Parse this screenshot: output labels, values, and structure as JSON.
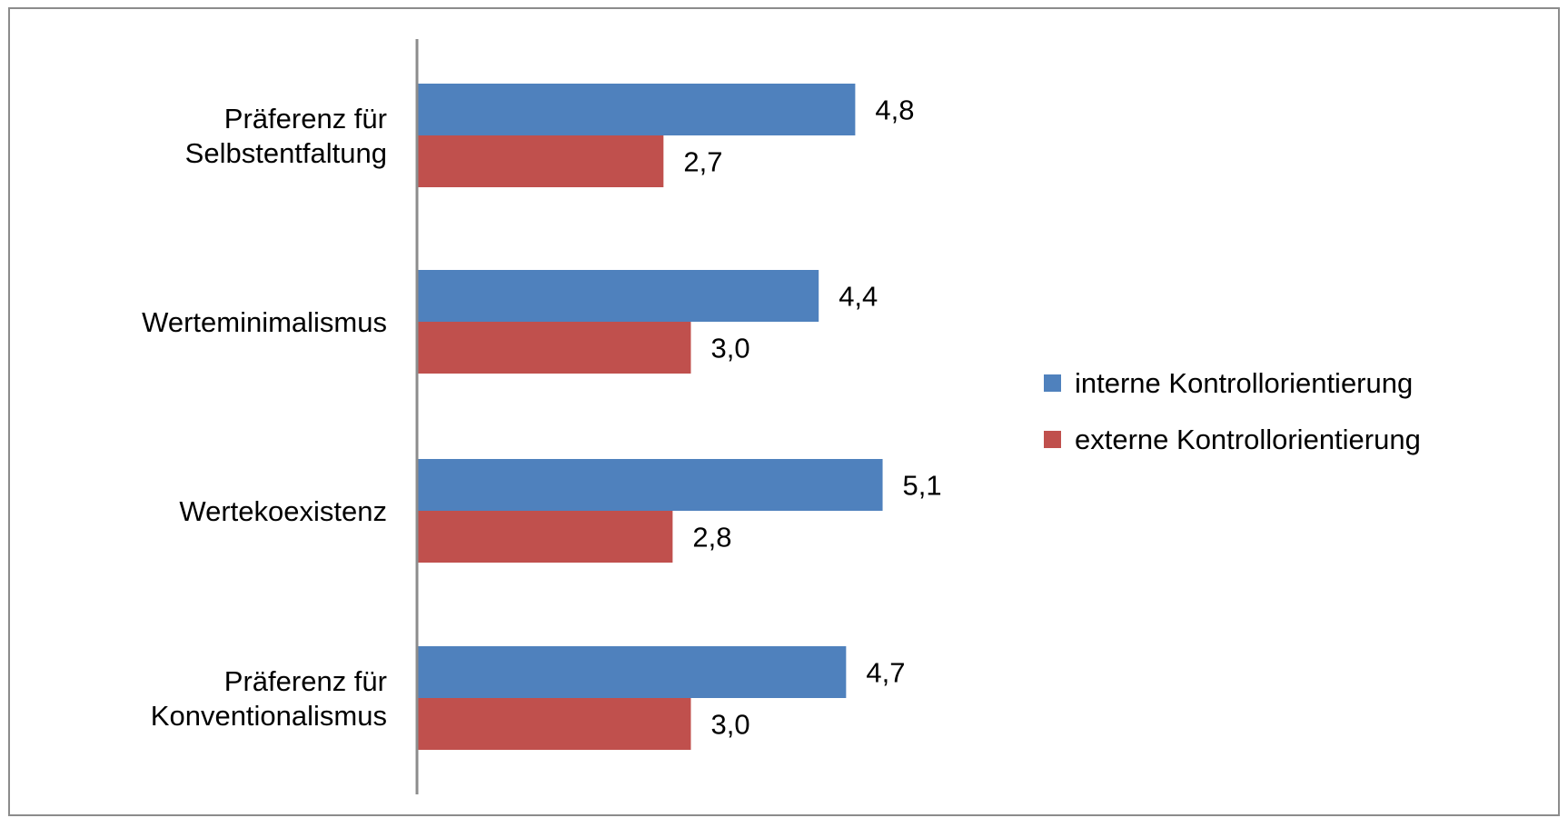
{
  "chart_data": {
    "type": "bar",
    "orientation": "horizontal",
    "categories": [
      [
        "Präferenz für",
        "Selbstentfaltung"
      ],
      [
        "Werteminimalismus"
      ],
      [
        "Wertekoexistenz"
      ],
      [
        "Präferenz für",
        "Konventionalismus"
      ]
    ],
    "series": [
      {
        "name": "interne Kontrollorientierung",
        "color": "#4F81BD",
        "values": [
          4.8,
          4.4,
          5.1,
          4.7
        ],
        "labels": [
          "4,8",
          "4,4",
          "5,1",
          "4,7"
        ]
      },
      {
        "name": "externe Kontrollorientierung",
        "color": "#C0504D",
        "values": [
          2.7,
          3.0,
          2.8,
          3.0
        ],
        "labels": [
          "2,7",
          "3,0",
          "2,8",
          "3,0"
        ]
      }
    ],
    "xlim": [
      0,
      6
    ],
    "grid": false,
    "legend_position": "right"
  }
}
